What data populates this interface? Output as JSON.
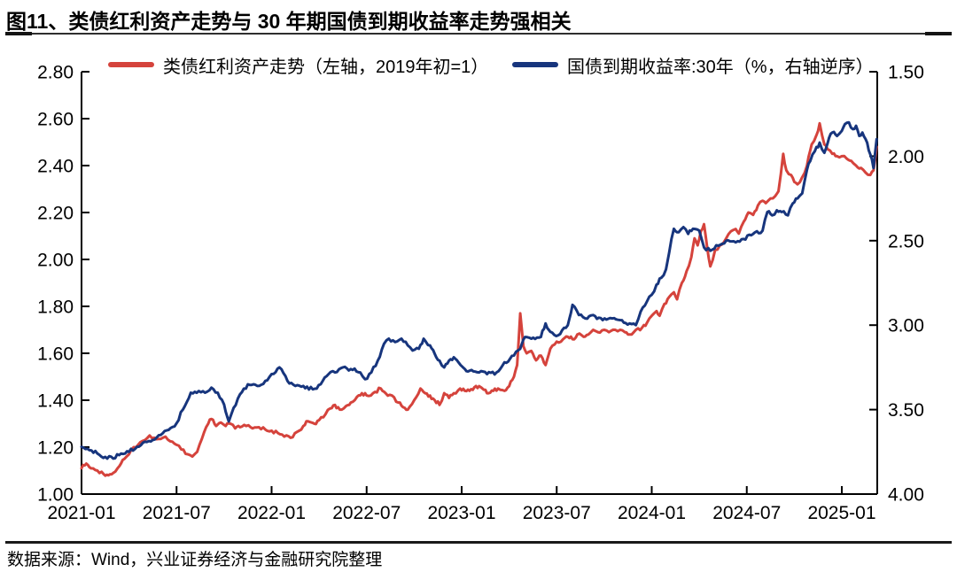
{
  "page": {
    "title": "图11、类债红利资产走势与 30 年期国债到期收益率走势强相关",
    "source_note": "数据来源：Wind，兴业证券经济与金融研究院整理"
  },
  "legend": {
    "items": [
      {
        "label": "类债红利资产走势（左轴，2019年初=1）",
        "color": "#d5433c"
      },
      {
        "label": "国债到期收益率:30年（%，右轴逆序）",
        "color": "#17357d"
      }
    ]
  },
  "chart_data": {
    "type": "line",
    "title": "图11、类债红利资产走势与 30 年期国债到期收益率走势强相关",
    "x_axis": {
      "unit": "months since 2021-01",
      "tick_labels": [
        "2021-01",
        "2021-07",
        "2022-01",
        "2022-07",
        "2023-01",
        "2023-07",
        "2024-01",
        "2024-07",
        "2025-01"
      ],
      "tick_months": [
        0,
        6,
        12,
        18,
        24,
        30,
        36,
        42,
        48
      ],
      "t_min": 0,
      "t_max": 50.2
    },
    "left_axis": {
      "applies_to": "类债红利资产走势",
      "min": 1.0,
      "max": 2.8,
      "step": 0.2,
      "decimals": 2,
      "inverted": false
    },
    "right_axis": {
      "applies_to": "国债到期收益率:30年(%)",
      "min": 1.5,
      "max": 4.0,
      "step": 0.5,
      "decimals": 2,
      "inverted": true
    },
    "grid": false,
    "legend_position": "top",
    "series": [
      {
        "name": "类债红利资产走势（左轴，2019年初=1）",
        "axis": "left",
        "color": "#d5433c",
        "points": [
          [
            0,
            1.11
          ],
          [
            0.3,
            1.13
          ],
          [
            0.6,
            1.11
          ],
          [
            1,
            1.1
          ],
          [
            1.4,
            1.085
          ],
          [
            1.7,
            1.08
          ],
          [
            2,
            1.09
          ],
          [
            2.4,
            1.12
          ],
          [
            2.7,
            1.15
          ],
          [
            3,
            1.17
          ],
          [
            3.3,
            1.2
          ],
          [
            3.7,
            1.22
          ],
          [
            4,
            1.23
          ],
          [
            4.3,
            1.25
          ],
          [
            4.6,
            1.24
          ],
          [
            5,
            1.235
          ],
          [
            5.3,
            1.245
          ],
          [
            5.6,
            1.225
          ],
          [
            6,
            1.21
          ],
          [
            6.3,
            1.19
          ],
          [
            6.7,
            1.17
          ],
          [
            7,
            1.16
          ],
          [
            7.3,
            1.18
          ],
          [
            7.6,
            1.235
          ],
          [
            8,
            1.3
          ],
          [
            8.2,
            1.32
          ],
          [
            8.5,
            1.29
          ],
          [
            8.8,
            1.305
          ],
          [
            9.1,
            1.29
          ],
          [
            9.4,
            1.3
          ],
          [
            9.7,
            1.28
          ],
          [
            10,
            1.285
          ],
          [
            10.4,
            1.29
          ],
          [
            10.8,
            1.28
          ],
          [
            11.2,
            1.285
          ],
          [
            11.6,
            1.275
          ],
          [
            12,
            1.27
          ],
          [
            12.4,
            1.26
          ],
          [
            12.8,
            1.245
          ],
          [
            13.2,
            1.24
          ],
          [
            13.6,
            1.265
          ],
          [
            14,
            1.29
          ],
          [
            14.3,
            1.31
          ],
          [
            14.7,
            1.3
          ],
          [
            15,
            1.315
          ],
          [
            15.4,
            1.34
          ],
          [
            15.7,
            1.365
          ],
          [
            16,
            1.38
          ],
          [
            16.3,
            1.36
          ],
          [
            16.7,
            1.375
          ],
          [
            17,
            1.39
          ],
          [
            17.4,
            1.415
          ],
          [
            17.7,
            1.43
          ],
          [
            18,
            1.42
          ],
          [
            18.4,
            1.43
          ],
          [
            18.9,
            1.45
          ],
          [
            19.2,
            1.43
          ],
          [
            19.6,
            1.42
          ],
          [
            20,
            1.39
          ],
          [
            20.3,
            1.37
          ],
          [
            20.6,
            1.36
          ],
          [
            21,
            1.4
          ],
          [
            21.4,
            1.45
          ],
          [
            21.7,
            1.43
          ],
          [
            22,
            1.42
          ],
          [
            22.3,
            1.4
          ],
          [
            22.6,
            1.38
          ],
          [
            22.9,
            1.43
          ],
          [
            23.2,
            1.41
          ],
          [
            23.5,
            1.43
          ],
          [
            23.9,
            1.45
          ],
          [
            24.2,
            1.44
          ],
          [
            24.5,
            1.44
          ],
          [
            24.8,
            1.455
          ],
          [
            25.1,
            1.46
          ],
          [
            25.4,
            1.445
          ],
          [
            25.7,
            1.43
          ],
          [
            26,
            1.44
          ],
          [
            26.3,
            1.45
          ],
          [
            26.7,
            1.44
          ],
          [
            27,
            1.46
          ],
          [
            27.3,
            1.5
          ],
          [
            27.5,
            1.55
          ],
          [
            27.7,
            1.77
          ],
          [
            27.9,
            1.63
          ],
          [
            28.1,
            1.6
          ],
          [
            28.4,
            1.61
          ],
          [
            28.7,
            1.57
          ],
          [
            29,
            1.59
          ],
          [
            29.3,
            1.55
          ],
          [
            29.6,
            1.62
          ],
          [
            30,
            1.65
          ],
          [
            30.4,
            1.66
          ],
          [
            30.7,
            1.67
          ],
          [
            31,
            1.66
          ],
          [
            31.3,
            1.68
          ],
          [
            31.7,
            1.67
          ],
          [
            32,
            1.68
          ],
          [
            32.3,
            1.7
          ],
          [
            32.6,
            1.69
          ],
          [
            33,
            1.7
          ],
          [
            33.3,
            1.69
          ],
          [
            33.7,
            1.7
          ],
          [
            34,
            1.7
          ],
          [
            34.3,
            1.69
          ],
          [
            34.6,
            1.68
          ],
          [
            35,
            1.7
          ],
          [
            35.4,
            1.71
          ],
          [
            35.7,
            1.73
          ],
          [
            36,
            1.76
          ],
          [
            36.3,
            1.78
          ],
          [
            36.5,
            1.76
          ],
          [
            36.8,
            1.81
          ],
          [
            37.1,
            1.84
          ],
          [
            37.4,
            1.86
          ],
          [
            37.6,
            1.83
          ],
          [
            37.9,
            1.9
          ],
          [
            38.2,
            1.95
          ],
          [
            38.5,
            2.01
          ],
          [
            38.7,
            2.09
          ],
          [
            38.9,
            2.06
          ],
          [
            39.1,
            2.12
          ],
          [
            39.3,
            2.15
          ],
          [
            39.5,
            2.05
          ],
          [
            39.7,
            1.97
          ],
          [
            40,
            2.04
          ],
          [
            40.3,
            2.06
          ],
          [
            40.7,
            2.09
          ],
          [
            41,
            2.12
          ],
          [
            41.3,
            2.13
          ],
          [
            41.5,
            2.11
          ],
          [
            41.8,
            2.16
          ],
          [
            42.1,
            2.2
          ],
          [
            42.4,
            2.19
          ],
          [
            42.7,
            2.23
          ],
          [
            43,
            2.25
          ],
          [
            43.2,
            2.24
          ],
          [
            43.5,
            2.26
          ],
          [
            43.8,
            2.27
          ],
          [
            44,
            2.29
          ],
          [
            44.3,
            2.45
          ],
          [
            44.5,
            2.38
          ],
          [
            44.8,
            2.36
          ],
          [
            45,
            2.33
          ],
          [
            45.2,
            2.32
          ],
          [
            45.5,
            2.35
          ],
          [
            45.8,
            2.4
          ],
          [
            46.1,
            2.49
          ],
          [
            46.4,
            2.53
          ],
          [
            46.6,
            2.58
          ],
          [
            46.9,
            2.49
          ],
          [
            47.1,
            2.47
          ],
          [
            47.4,
            2.45
          ],
          [
            47.7,
            2.44
          ],
          [
            48,
            2.44
          ],
          [
            48.3,
            2.43
          ],
          [
            48.6,
            2.42
          ],
          [
            48.9,
            2.4
          ],
          [
            49.2,
            2.39
          ],
          [
            49.5,
            2.37
          ],
          [
            49.8,
            2.36
          ],
          [
            50,
            2.38
          ],
          [
            50.2,
            2.48
          ]
        ]
      },
      {
        "name": "国债到期收益率:30年（%，右轴逆序）",
        "axis": "right",
        "color": "#17357d",
        "points": [
          [
            0,
            3.72
          ],
          [
            0.5,
            3.74
          ],
          [
            1,
            3.76
          ],
          [
            1.5,
            3.78
          ],
          [
            2,
            3.79
          ],
          [
            2.5,
            3.76
          ],
          [
            3,
            3.75
          ],
          [
            3.5,
            3.72
          ],
          [
            4,
            3.69
          ],
          [
            4.5,
            3.68
          ],
          [
            5,
            3.65
          ],
          [
            5.5,
            3.62
          ],
          [
            6,
            3.58
          ],
          [
            6.4,
            3.5
          ],
          [
            6.9,
            3.4
          ],
          [
            7.4,
            3.39
          ],
          [
            7.8,
            3.4
          ],
          [
            8.2,
            3.37
          ],
          [
            8.6,
            3.4
          ],
          [
            9,
            3.47
          ],
          [
            9.3,
            3.57
          ],
          [
            9.6,
            3.49
          ],
          [
            10,
            3.41
          ],
          [
            10.5,
            3.35
          ],
          [
            11.1,
            3.36
          ],
          [
            11.6,
            3.33
          ],
          [
            12,
            3.29
          ],
          [
            12.5,
            3.25
          ],
          [
            13,
            3.33
          ],
          [
            13.5,
            3.36
          ],
          [
            14,
            3.36
          ],
          [
            14.6,
            3.38
          ],
          [
            15.1,
            3.35
          ],
          [
            15.6,
            3.29
          ],
          [
            16,
            3.28
          ],
          [
            16.5,
            3.25
          ],
          [
            17,
            3.26
          ],
          [
            17.6,
            3.28
          ],
          [
            17.9,
            3.32
          ],
          [
            18.3,
            3.28
          ],
          [
            18.7,
            3.21
          ],
          [
            19.1,
            3.11
          ],
          [
            19.4,
            3.08
          ],
          [
            19.8,
            3.1
          ],
          [
            20.2,
            3.08
          ],
          [
            20.6,
            3.12
          ],
          [
            20.9,
            3.15
          ],
          [
            21.3,
            3.14
          ],
          [
            21.6,
            3.08
          ],
          [
            22,
            3.12
          ],
          [
            22.3,
            3.17
          ],
          [
            22.6,
            3.21
          ],
          [
            22.9,
            3.25
          ],
          [
            23.2,
            3.21
          ],
          [
            23.5,
            3.19
          ],
          [
            23.8,
            3.22
          ],
          [
            24.2,
            3.26
          ],
          [
            24.5,
            3.27
          ],
          [
            25.1,
            3.28
          ],
          [
            25.6,
            3.29
          ],
          [
            26.2,
            3.28
          ],
          [
            26.7,
            3.22
          ],
          [
            27.3,
            3.18
          ],
          [
            27.7,
            3.14
          ],
          [
            28,
            3.07
          ],
          [
            28.4,
            3.08
          ],
          [
            29,
            3.07
          ],
          [
            29.3,
            2.99
          ],
          [
            29.6,
            3.04
          ],
          [
            30.1,
            3.06
          ],
          [
            30.7,
            3.0
          ],
          [
            31,
            2.88
          ],
          [
            31.4,
            2.94
          ],
          [
            31.8,
            2.96
          ],
          [
            32.3,
            2.94
          ],
          [
            32.9,
            2.97
          ],
          [
            33.5,
            2.96
          ],
          [
            34,
            2.97
          ],
          [
            34.6,
            2.99
          ],
          [
            35,
            3.0
          ],
          [
            35.3,
            2.92
          ],
          [
            35.7,
            2.86
          ],
          [
            36,
            2.82
          ],
          [
            36.3,
            2.76
          ],
          [
            36.6,
            2.72
          ],
          [
            36.9,
            2.67
          ],
          [
            37.1,
            2.57
          ],
          [
            37.4,
            2.43
          ],
          [
            37.7,
            2.45
          ],
          [
            38,
            2.42
          ],
          [
            38.3,
            2.46
          ],
          [
            38.6,
            2.43
          ],
          [
            39,
            2.44
          ],
          [
            39.3,
            2.54
          ],
          [
            39.7,
            2.56
          ],
          [
            40.2,
            2.53
          ],
          [
            40.7,
            2.5
          ],
          [
            41.3,
            2.51
          ],
          [
            41.8,
            2.49
          ],
          [
            42.4,
            2.46
          ],
          [
            43,
            2.44
          ],
          [
            43.3,
            2.33
          ],
          [
            43.6,
            2.35
          ],
          [
            43.9,
            2.32
          ],
          [
            44.2,
            2.33
          ],
          [
            44.6,
            2.35
          ],
          [
            44.9,
            2.28
          ],
          [
            45.2,
            2.25
          ],
          [
            45.5,
            2.22
          ],
          [
            45.8,
            2.08
          ],
          [
            46,
            2.03
          ],
          [
            46.3,
            1.97
          ],
          [
            46.6,
            1.92
          ],
          [
            46.9,
            1.98
          ],
          [
            47.2,
            1.89
          ],
          [
            47.4,
            1.86
          ],
          [
            47.7,
            1.88
          ],
          [
            48,
            1.85
          ],
          [
            48.2,
            1.81
          ],
          [
            48.45,
            1.8
          ],
          [
            48.7,
            1.84
          ],
          [
            48.9,
            1.82
          ],
          [
            49.1,
            1.88
          ],
          [
            49.3,
            1.86
          ],
          [
            49.6,
            1.92
          ],
          [
            49.8,
            1.99
          ],
          [
            50,
            2.07
          ],
          [
            50.2,
            1.9
          ]
        ]
      }
    ]
  }
}
